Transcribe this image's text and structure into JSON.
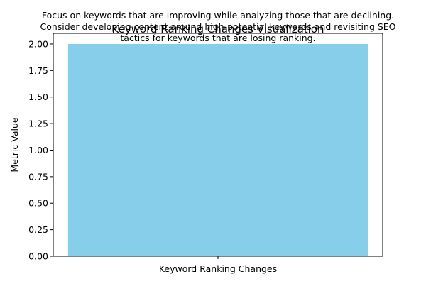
{
  "chart_data": {
    "type": "bar",
    "title": "Keyword Ranking Changes Visualization",
    "annotation": [
      "Focus on keywords that are improving while analyzing those that are declining.",
      "Consider developing content around high-potential keywords and revisiting SEO",
      "tactics for keywords that are losing ranking."
    ],
    "categories": [
      "Keyword Ranking Changes"
    ],
    "values": [
      2
    ],
    "xlabel": "Keyword Ranking Changes",
    "ylabel": "Metric Value",
    "ylim": [
      0,
      2.1
    ],
    "yticks": [
      "0.00",
      "0.25",
      "0.50",
      "0.75",
      "1.00",
      "1.25",
      "1.50",
      "1.75",
      "2.00"
    ],
    "bar_color": "#87CEEB",
    "grid": false,
    "legend": "none"
  }
}
